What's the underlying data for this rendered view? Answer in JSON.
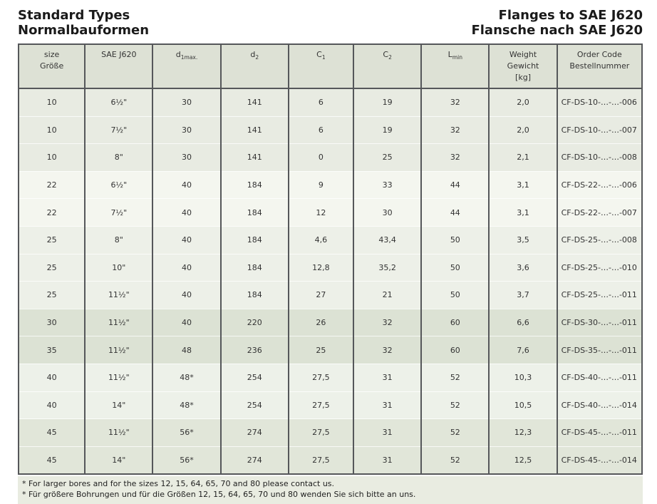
{
  "page": {
    "title_left_line1": "Standard Types",
    "title_left_line2": "Normalbauformen",
    "title_right_line1": "Flanges to SAE J620",
    "title_right_line2": "Flansche nach SAE J620"
  },
  "colors": {
    "border": "#55575a",
    "header_bg": "#dde1d5",
    "text": "#333333",
    "footnote_bg": "#e9ece1",
    "row_shades": {
      "s10": "#e8ebe2",
      "s22": "#f4f6ef",
      "s25": "#edf0e8",
      "s30_35": "#dce2d4",
      "s40": "#edf1e9",
      "s45": "#e1e6d9"
    }
  },
  "table": {
    "headers": {
      "size": {
        "line1": "size",
        "line2": "Größe"
      },
      "sae": {
        "line1": "SAE J620"
      },
      "d1max": {
        "base": "d",
        "sub": "1max."
      },
      "d2": {
        "base": "d",
        "sub": "2"
      },
      "c1": {
        "base": "C",
        "sub": "1"
      },
      "c2": {
        "base": "C",
        "sub": "2"
      },
      "lmin": {
        "base": "L",
        "sub": "min"
      },
      "weight": {
        "line1": "Weight",
        "line2": "Gewicht",
        "line3": "[kg]"
      },
      "order": {
        "line1": "Order Code",
        "line2": "Bestellnummer"
      }
    },
    "rows": [
      {
        "size": "10",
        "sae": "6½\"",
        "d1max": "30",
        "d2": "141",
        "c1": "6",
        "c2": "19",
        "lmin": "32",
        "weight": "2,0",
        "order": "CF-DS-10-…-…-006",
        "shade": "s10"
      },
      {
        "size": "10",
        "sae": "7½\"",
        "d1max": "30",
        "d2": "141",
        "c1": "6",
        "c2": "19",
        "lmin": "32",
        "weight": "2,0",
        "order": "CF-DS-10-…-…-007",
        "shade": "s10"
      },
      {
        "size": "10",
        "sae": "8\"",
        "d1max": "30",
        "d2": "141",
        "c1": "0",
        "c2": "25",
        "lmin": "32",
        "weight": "2,1",
        "order": "CF-DS-10-…-…-008",
        "shade": "s10"
      },
      {
        "size": "22",
        "sae": "6½\"",
        "d1max": "40",
        "d2": "184",
        "c1": "9",
        "c2": "33",
        "lmin": "44",
        "weight": "3,1",
        "order": "CF-DS-22-…-…-006",
        "shade": "s22"
      },
      {
        "size": "22",
        "sae": "7½\"",
        "d1max": "40",
        "d2": "184",
        "c1": "12",
        "c2": "30",
        "lmin": "44",
        "weight": "3,1",
        "order": "CF-DS-22-…-…-007",
        "shade": "s22"
      },
      {
        "size": "25",
        "sae": "8\"",
        "d1max": "40",
        "d2": "184",
        "c1": "4,6",
        "c2": "43,4",
        "lmin": "50",
        "weight": "3,5",
        "order": "CF-DS-25-…-…-008",
        "shade": "s25"
      },
      {
        "size": "25",
        "sae": "10\"",
        "d1max": "40",
        "d2": "184",
        "c1": "12,8",
        "c2": "35,2",
        "lmin": "50",
        "weight": "3,6",
        "order": "CF-DS-25-…-…-010",
        "shade": "s25"
      },
      {
        "size": "25",
        "sae": "11½\"",
        "d1max": "40",
        "d2": "184",
        "c1": "27",
        "c2": "21",
        "lmin": "50",
        "weight": "3,7",
        "order": "CF-DS-25-…-…-011",
        "shade": "s25"
      },
      {
        "size": "30",
        "sae": "11½\"",
        "d1max": "40",
        "d2": "220",
        "c1": "26",
        "c2": "32",
        "lmin": "60",
        "weight": "6,6",
        "order": "CF-DS-30-…-…-011",
        "shade": "s30_35"
      },
      {
        "size": "35",
        "sae": "11½\"",
        "d1max": "48",
        "d2": "236",
        "c1": "25",
        "c2": "32",
        "lmin": "60",
        "weight": "7,6",
        "order": "CF-DS-35-…-…-011",
        "shade": "s30_35"
      },
      {
        "size": "40",
        "sae": "11½\"",
        "d1max": "48*",
        "d2": "254",
        "c1": "27,5",
        "c2": "31",
        "lmin": "52",
        "weight": "10,3",
        "order": "CF-DS-40-…-…-011",
        "shade": "s40"
      },
      {
        "size": "40",
        "sae": "14\"",
        "d1max": "48*",
        "d2": "254",
        "c1": "27,5",
        "c2": "31",
        "lmin": "52",
        "weight": "10,5",
        "order": "CF-DS-40-…-…-014",
        "shade": "s40"
      },
      {
        "size": "45",
        "sae": "11½\"",
        "d1max": "56*",
        "d2": "274",
        "c1": "27,5",
        "c2": "31",
        "lmin": "52",
        "weight": "12,3",
        "order": "CF-DS-45-…-…-011",
        "shade": "s45"
      },
      {
        "size": "45",
        "sae": "14\"",
        "d1max": "56*",
        "d2": "274",
        "c1": "27,5",
        "c2": "31",
        "lmin": "52",
        "weight": "12,5",
        "order": "CF-DS-45-…-…-014",
        "shade": "s45"
      }
    ]
  },
  "footnotes": [
    "* For larger bores and for the sizes 12, 15, 64, 65, 70 and 80 please contact us.",
    "* Für größere Bohrungen und für die Größen 12, 15, 64, 65, 70 und 80 wenden Sie sich bitte an uns."
  ]
}
